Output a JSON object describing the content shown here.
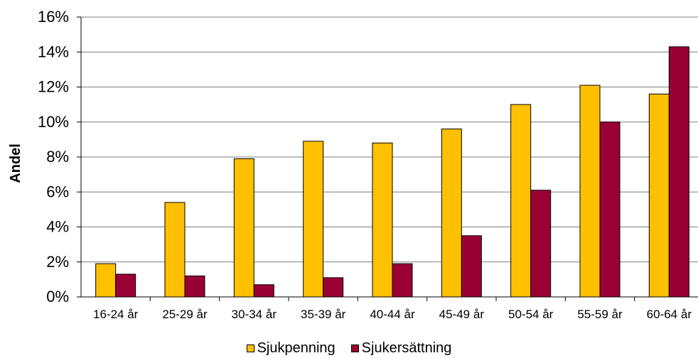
{
  "chart_data": {
    "type": "bar",
    "categories": [
      "16-24 år",
      "25-29 år",
      "30-34 år",
      "35-39 år",
      "40-44 år",
      "45-49 år",
      "50-54 år",
      "55-59 år",
      "60-64 år"
    ],
    "series": [
      {
        "name": "Sjukpenning",
        "color": "#FFC000",
        "values": [
          1.9,
          5.4,
          7.9,
          8.9,
          8.8,
          9.6,
          11.0,
          12.1,
          11.6
        ]
      },
      {
        "name": "Sjukersättning",
        "color": "#990033",
        "values": [
          1.3,
          1.2,
          0.7,
          1.1,
          1.9,
          3.5,
          6.1,
          10.0,
          14.3
        ]
      }
    ],
    "yticks": [
      "0%",
      "2%",
      "4%",
      "6%",
      "8%",
      "10%",
      "12%",
      "14%",
      "16%"
    ],
    "ylim": [
      0,
      16
    ],
    "ylabel": "Andel",
    "xlabel": "",
    "grid": true,
    "legend_position": "bottom"
  }
}
